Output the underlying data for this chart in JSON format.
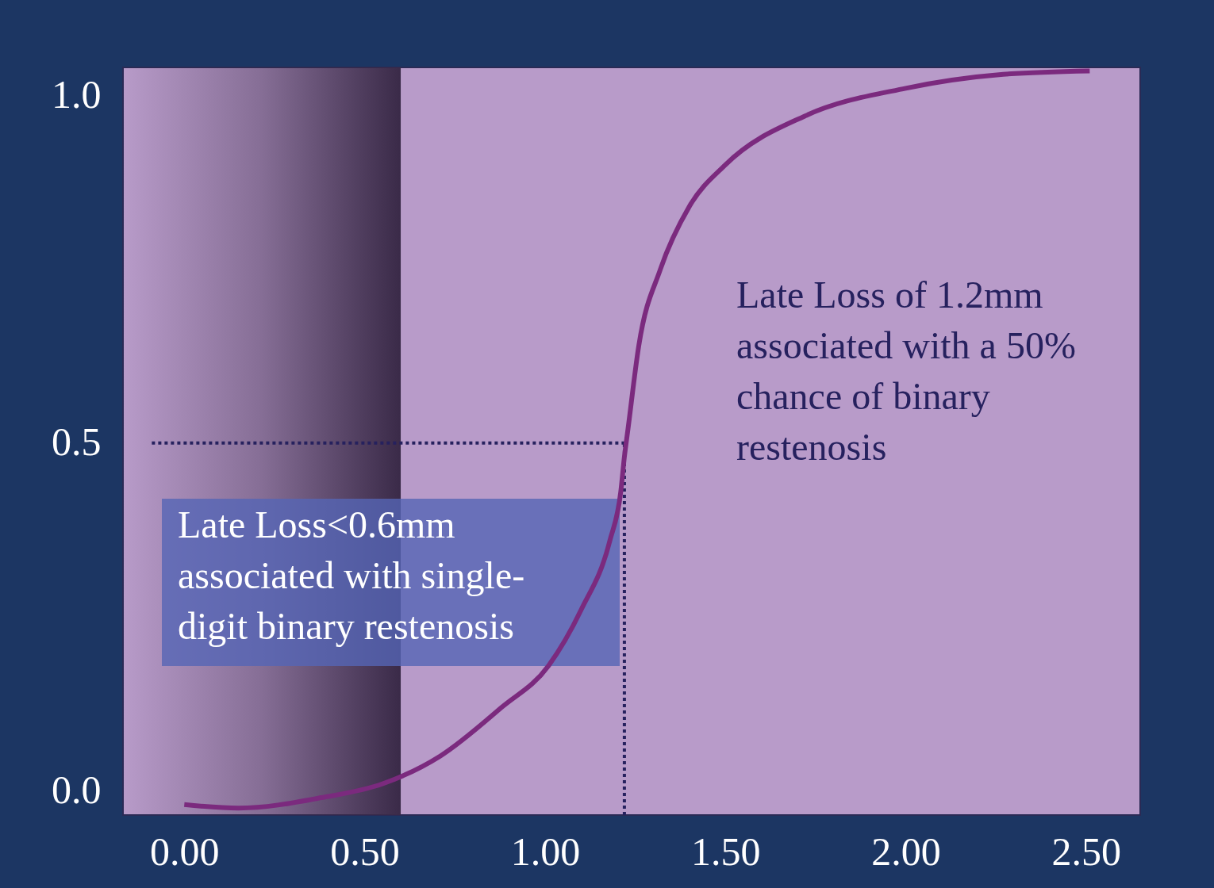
{
  "chart_data": {
    "type": "line",
    "x": [
      0.0,
      0.15,
      0.38,
      0.55,
      0.71,
      0.88,
      1.01,
      1.1,
      1.18,
      1.21,
      1.22,
      1.23,
      1.26,
      1.32,
      1.4,
      1.5,
      1.72,
      2.0,
      2.27,
      2.51
    ],
    "series": [
      {
        "color": "#7b2a7e",
        "values": [
          -0.02,
          -0.025,
          -0.01,
          0.01,
          0.05,
          0.12,
          0.18,
          0.26,
          0.36,
          0.43,
          0.48,
          0.52,
          0.64,
          0.75,
          0.84,
          0.9,
          0.97,
          1.01,
          1.03,
          1.035
        ]
      }
    ],
    "xlim": [
      -0.17,
      2.65
    ],
    "ylim": [
      -0.035,
      1.04
    ],
    "xticks": [
      {
        "value": 0,
        "label": "0.00"
      },
      {
        "value": 0.5,
        "label": "0.50"
      },
      {
        "value": 1,
        "label": "1.00"
      },
      {
        "value": 1.5,
        "label": "1.50"
      },
      {
        "value": 2,
        "label": "2.00"
      },
      {
        "value": 2.5,
        "label": "2.50"
      }
    ],
    "yticks": [
      {
        "value": 0,
        "label": "0.0"
      },
      {
        "value": 0.5,
        "label": "0.5"
      },
      {
        "value": 1,
        "label": "1.0"
      }
    ],
    "ref_lines": [
      {
        "axis": "x",
        "value": 1.22,
        "color": "#26215e",
        "line_style": "dotted"
      },
      {
        "axis": "y",
        "value": 0.5,
        "color": "#26215e",
        "line_style": "dotted"
      }
    ],
    "bands": [
      {
        "axis": "x",
        "from": -0.17,
        "to": 0.6,
        "color": "#3a2a48"
      }
    ],
    "annotations": [
      "Late Loss of 1.2mm\nassociated with a 50%\nchance of binary\nrestenosis",
      "Late Loss<0.6mm\nassociated with single-\ndigit binary restenosis"
    ],
    "grid": false
  }
}
